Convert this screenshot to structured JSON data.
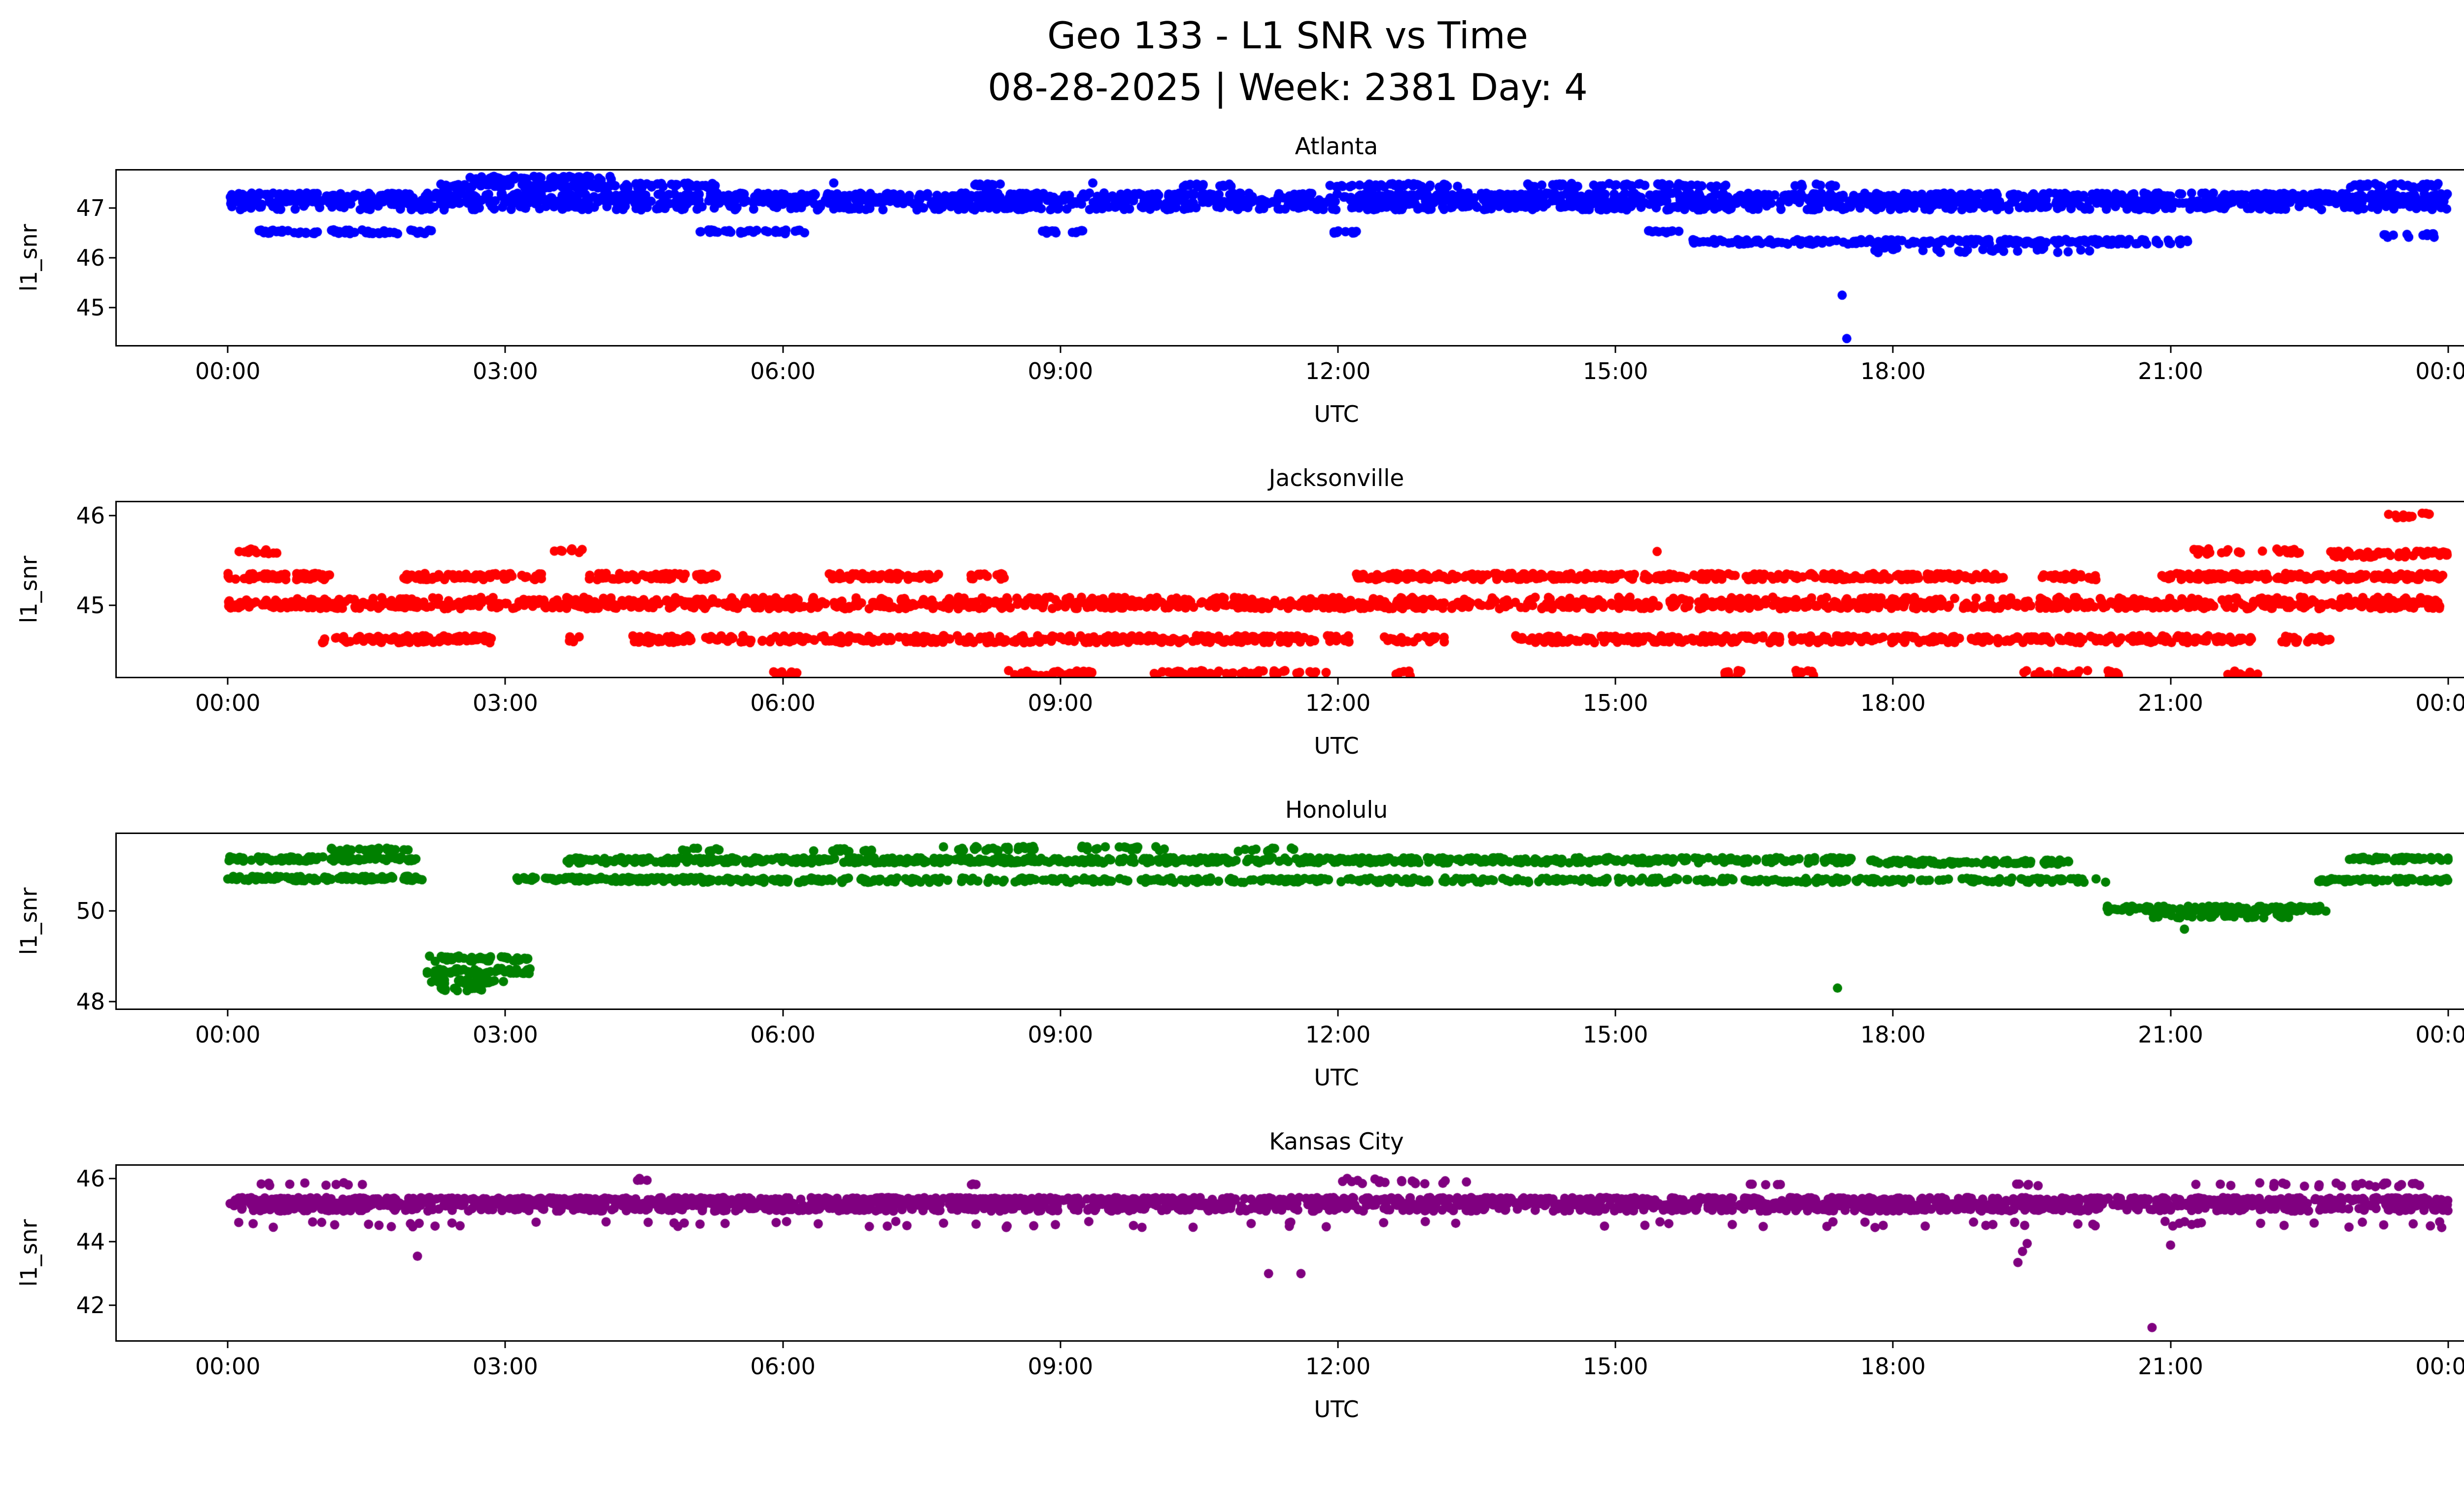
{
  "figure": {
    "title_line1": "Geo 133 - L1 SNR vs Time",
    "title_line2": "08-28-2025 | Week: 2381 Day: 4"
  },
  "chart_data": [
    {
      "type": "scatter",
      "title": "Atlanta",
      "color": "#0000ff",
      "xlabel": "UTC",
      "ylabel": "l1_snr",
      "xlim": [
        -1.2,
        25.2
      ],
      "ylim": [
        44.25,
        47.75
      ],
      "xticks": [
        0,
        3,
        6,
        9,
        12,
        15,
        18,
        21,
        24
      ],
      "xtick_labels": [
        "00:00",
        "03:00",
        "06:00",
        "09:00",
        "12:00",
        "15:00",
        "18:00",
        "21:00",
        "00:00"
      ],
      "yticks": [
        45,
        46,
        47
      ],
      "bands_schema": [
        "t_start_hours",
        "t_end_hours",
        "snr_db",
        "n_points",
        "y_jitter_db"
      ],
      "bands": [
        [
          0,
          24,
          47.25,
          850,
          0.05
        ],
        [
          0,
          24,
          47.12,
          850,
          0.05
        ],
        [
          0,
          24,
          47.0,
          450,
          0.04
        ],
        [
          2.3,
          5.3,
          47.45,
          130,
          0.05
        ],
        [
          2.6,
          4.15,
          47.6,
          55,
          0.04
        ],
        [
          7.9,
          8.35,
          47.45,
          14,
          0.03
        ],
        [
          10.3,
          10.9,
          47.45,
          16,
          0.03
        ],
        [
          11.9,
          13.3,
          47.45,
          45,
          0.04
        ],
        [
          13.9,
          16.2,
          47.45,
          55,
          0.04
        ],
        [
          16.9,
          17.4,
          47.45,
          10,
          0.03
        ],
        [
          22.9,
          23.9,
          47.45,
          35,
          0.04
        ],
        [
          0.3,
          2.2,
          46.52,
          70,
          0.04
        ],
        [
          5.1,
          6.25,
          46.52,
          35,
          0.04
        ],
        [
          8.8,
          9.25,
          46.52,
          14,
          0.03
        ],
        [
          11.9,
          12.25,
          46.52,
          10,
          0.03
        ],
        [
          15.3,
          15.75,
          46.52,
          12,
          0.03
        ],
        [
          15.8,
          21.2,
          46.32,
          220,
          0.05
        ],
        [
          17.8,
          20.3,
          46.15,
          28,
          0.05
        ],
        [
          23.3,
          23.85,
          46.45,
          14,
          0.04
        ]
      ],
      "outliers": [
        [
          6.55,
          47.5
        ],
        [
          9.35,
          47.5
        ],
        [
          17.45,
          45.25
        ],
        [
          17.5,
          44.38
        ]
      ]
    },
    {
      "type": "scatter",
      "title": "Jacksonville",
      "color": "#ff0000",
      "xlabel": "UTC",
      "ylabel": "l1_snr",
      "xlim": [
        -1.2,
        25.2
      ],
      "ylim": [
        44.2,
        46.15
      ],
      "xticks": [
        0,
        3,
        6,
        9,
        12,
        15,
        18,
        21,
        24
      ],
      "xtick_labels": [
        "00:00",
        "03:00",
        "06:00",
        "09:00",
        "12:00",
        "15:00",
        "18:00",
        "21:00",
        "00:00"
      ],
      "yticks": [
        45,
        46
      ],
      "bands_schema": [
        "t_start_hours",
        "t_end_hours",
        "snr_db",
        "n_points",
        "y_jitter_db"
      ],
      "bands": [
        [
          0,
          24,
          45.0,
          1000,
          0.04
        ],
        [
          0,
          24,
          45.06,
          400,
          0.03
        ],
        [
          0.0,
          1.1,
          45.32,
          70,
          0.035
        ],
        [
          1.9,
          3.4,
          45.32,
          80,
          0.035
        ],
        [
          3.9,
          5.3,
          45.32,
          70,
          0.035
        ],
        [
          6.5,
          7.7,
          45.32,
          55,
          0.035
        ],
        [
          8.0,
          8.4,
          45.32,
          15,
          0.035
        ],
        [
          12.2,
          16.3,
          45.32,
          240,
          0.035
        ],
        [
          16.4,
          19.2,
          45.32,
          150,
          0.035
        ],
        [
          19.6,
          20.2,
          45.32,
          25,
          0.035
        ],
        [
          20.9,
          24.0,
          45.32,
          190,
          0.035
        ],
        [
          0.05,
          0.55,
          45.6,
          16,
          0.03
        ],
        [
          3.5,
          3.85,
          45.6,
          10,
          0.03
        ],
        [
          21.2,
          22.4,
          45.6,
          28,
          0.03
        ],
        [
          22.7,
          24.0,
          45.57,
          70,
          0.035
        ],
        [
          23.35,
          23.8,
          46.0,
          12,
          0.03
        ],
        [
          1.0,
          2.85,
          44.62,
          100,
          0.04
        ],
        [
          3.6,
          3.8,
          44.62,
          6,
          0.03
        ],
        [
          4.3,
          12.15,
          44.62,
          380,
          0.04
        ],
        [
          12.5,
          13.15,
          44.62,
          28,
          0.035
        ],
        [
          13.9,
          21.9,
          44.62,
          380,
          0.04
        ],
        [
          22.2,
          22.75,
          44.62,
          20,
          0.035
        ],
        [
          5.9,
          6.25,
          44.24,
          10,
          0.03
        ],
        [
          8.4,
          9.35,
          44.24,
          30,
          0.03
        ],
        [
          10.0,
          11.9,
          44.24,
          60,
          0.03
        ],
        [
          12.6,
          12.8,
          44.24,
          6,
          0.03
        ],
        [
          16.1,
          16.45,
          44.24,
          10,
          0.03
        ],
        [
          16.9,
          17.15,
          44.24,
          7,
          0.03
        ],
        [
          19.4,
          20.45,
          44.24,
          26,
          0.03
        ],
        [
          21.6,
          21.95,
          44.24,
          9,
          0.03
        ]
      ],
      "outliers": [
        [
          15.45,
          45.6
        ]
      ]
    },
    {
      "type": "scatter",
      "title": "Honolulu",
      "color": "#008000",
      "xlabel": "UTC",
      "ylabel": "l1_snr",
      "xlim": [
        -1.2,
        25.2
      ],
      "ylim": [
        47.85,
        51.7
      ],
      "xticks": [
        0,
        3,
        6,
        9,
        12,
        15,
        18,
        21,
        24
      ],
      "xtick_labels": [
        "00:00",
        "03:00",
        "06:00",
        "09:00",
        "12:00",
        "15:00",
        "18:00",
        "21:00",
        "00:00"
      ],
      "yticks": [
        48,
        50
      ],
      "bands_schema": [
        "t_start_hours",
        "t_end_hours",
        "snr_db",
        "n_points",
        "y_jitter_db"
      ],
      "bands": [
        [
          0.0,
          2.1,
          51.15,
          110,
          0.05
        ],
        [
          0.0,
          2.1,
          50.72,
          110,
          0.05
        ],
        [
          1.0,
          2.05,
          51.35,
          22,
          0.04
        ],
        [
          2.15,
          3.25,
          48.95,
          45,
          0.06
        ],
        [
          2.15,
          3.3,
          48.68,
          55,
          0.06
        ],
        [
          2.2,
          3.0,
          48.45,
          35,
          0.05
        ],
        [
          2.3,
          2.75,
          48.28,
          12,
          0.04
        ],
        [
          3.1,
          5.15,
          50.7,
          130,
          0.05
        ],
        [
          3.65,
          17.6,
          51.12,
          700,
          0.06
        ],
        [
          17.75,
          19.9,
          51.08,
          110,
          0.05
        ],
        [
          5.1,
          20.35,
          50.68,
          480,
          0.05
        ],
        [
          22.6,
          24.0,
          50.68,
          70,
          0.04
        ],
        [
          22.9,
          24.0,
          51.15,
          55,
          0.04
        ],
        [
          4.9,
          5.35,
          51.35,
          9,
          0.04
        ],
        [
          6.3,
          7.05,
          51.35,
          14,
          0.04
        ],
        [
          7.6,
          8.75,
          51.38,
          26,
          0.05
        ],
        [
          9.2,
          10.15,
          51.38,
          20,
          0.05
        ],
        [
          10.9,
          11.55,
          51.35,
          10,
          0.04
        ],
        [
          20.3,
          22.7,
          50.05,
          130,
          0.06
        ],
        [
          20.8,
          22.3,
          49.9,
          45,
          0.05
        ]
      ],
      "outliers": [
        [
          21.15,
          49.6
        ],
        [
          17.4,
          48.3
        ]
      ]
    },
    {
      "type": "scatter",
      "title": "Kansas City",
      "color": "#800080",
      "xlabel": "UTC",
      "ylabel": "l1_snr",
      "xlim": [
        -1.2,
        25.2
      ],
      "ylim": [
        40.9,
        46.4
      ],
      "xticks": [
        0,
        3,
        6,
        9,
        12,
        15,
        18,
        21,
        24
      ],
      "xtick_labels": [
        "00:00",
        "03:00",
        "06:00",
        "09:00",
        "12:00",
        "15:00",
        "18:00",
        "21:00",
        "00:00"
      ],
      "yticks": [
        42,
        44,
        46
      ],
      "bands_schema": [
        "t_start_hours",
        "t_end_hours",
        "snr_db",
        "n_points",
        "y_jitter_db"
      ],
      "bands": [
        [
          0,
          24,
          45.35,
          850,
          0.05
        ],
        [
          0,
          24,
          45.18,
          850,
          0.05
        ],
        [
          0,
          24,
          45.02,
          500,
          0.05
        ],
        [
          0,
          24,
          44.55,
          85,
          0.1
        ],
        [
          0.35,
          1.5,
          45.82,
          10,
          0.05
        ],
        [
          11.9,
          13.4,
          45.88,
          16,
          0.06
        ],
        [
          21.0,
          23.95,
          45.8,
          26,
          0.06
        ],
        [
          16.4,
          16.8,
          45.8,
          5,
          0.04
        ],
        [
          19.3,
          19.6,
          45.8,
          5,
          0.04
        ],
        [
          4.35,
          4.55,
          45.95,
          3,
          0.03
        ],
        [
          8.0,
          8.2,
          45.8,
          3,
          0.03
        ]
      ],
      "outliers": [
        [
          2.05,
          43.55
        ],
        [
          11.25,
          43.0
        ],
        [
          11.6,
          43.0
        ],
        [
          19.35,
          43.35
        ],
        [
          19.4,
          43.7
        ],
        [
          19.45,
          43.95
        ],
        [
          20.8,
          41.3
        ],
        [
          21.0,
          43.9
        ],
        [
          4.45,
          46.0
        ],
        [
          12.1,
          46.0
        ],
        [
          12.4,
          45.98
        ]
      ]
    }
  ]
}
